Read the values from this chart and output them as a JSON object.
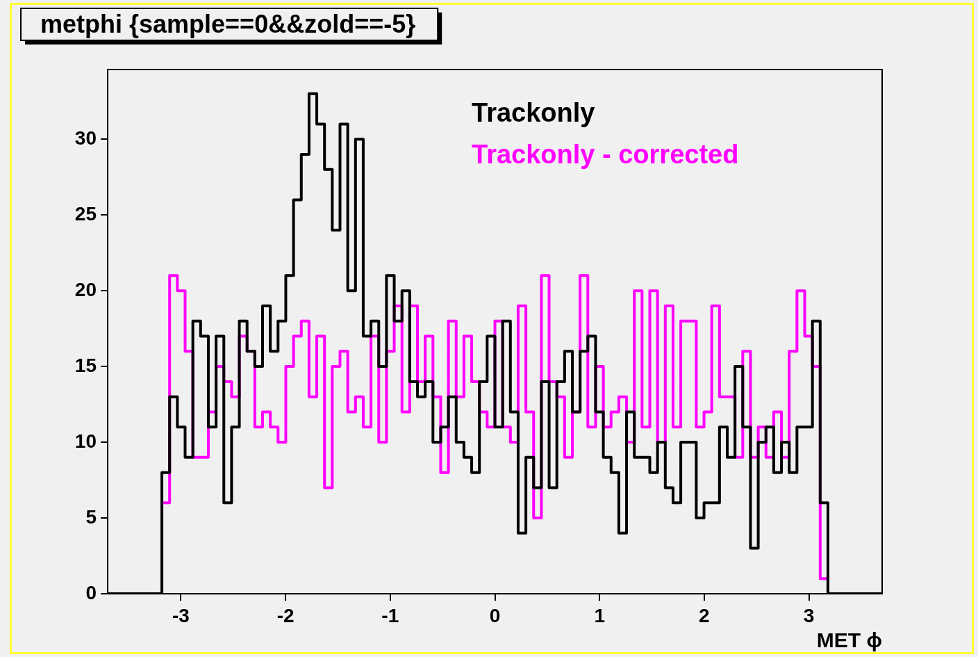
{
  "chart_data": {
    "type": "histogram",
    "title": "metphi {sample==0&&zold==-5}",
    "xlabel": "MET ϕ",
    "legend": "top right",
    "grid": false,
    "bins": [
      -3.7,
      -3.626,
      -3.552,
      -3.478,
      -3.404,
      -3.33,
      -3.256,
      -3.182,
      -3.108,
      -3.034,
      -2.96,
      -2.886,
      -2.812,
      -2.738,
      -2.664,
      -2.59,
      -2.516,
      -2.442,
      -2.368,
      -2.294,
      -2.22,
      -2.146,
      -2.072,
      -1.998,
      -1.924,
      -1.85,
      -1.776,
      -1.702,
      -1.628,
      -1.554,
      -1.48,
      -1.406,
      -1.332,
      -1.258,
      -1.184,
      -1.11,
      -1.036,
      -0.962,
      -0.888,
      -0.814,
      -0.74,
      -0.666,
      -0.592,
      -0.518,
      -0.444,
      -0.37,
      -0.296,
      -0.222,
      -0.148,
      -0.074,
      0,
      0.074,
      0.148,
      0.222,
      0.296,
      0.37,
      0.444,
      0.518,
      0.592,
      0.666,
      0.74,
      0.814,
      0.888,
      0.962,
      1.036,
      1.11,
      1.184,
      1.258,
      1.332,
      1.406,
      1.48,
      1.554,
      1.628,
      1.702,
      1.776,
      1.85,
      1.924,
      1.998,
      2.072,
      2.146,
      2.22,
      2.294,
      2.368,
      2.442,
      2.516,
      2.59,
      2.664,
      2.738,
      2.812,
      2.886,
      2.96,
      3.034,
      3.108,
      3.182,
      3.256,
      3.33,
      3.404,
      3.478,
      3.552,
      3.626,
      3.7
    ],
    "series": [
      {
        "name": "Trackonly",
        "color": "#000000",
        "values": [
          0,
          0,
          0,
          0,
          0,
          0,
          0,
          8,
          13,
          11,
          9,
          18,
          17,
          11,
          17,
          6,
          11,
          18,
          16,
          15,
          19,
          16,
          18,
          21,
          26,
          29,
          33,
          31,
          28,
          24,
          31,
          20,
          30,
          17,
          18,
          15,
          21,
          18,
          20,
          14,
          13,
          14,
          10,
          11,
          13,
          10,
          9,
          8,
          14,
          17,
          11,
          18,
          12,
          4,
          9,
          7,
          14,
          7,
          14,
          16,
          12,
          16,
          17,
          12,
          9,
          8,
          4,
          12,
          9,
          9,
          8,
          10,
          7,
          6,
          10,
          10,
          5,
          6,
          6,
          11,
          9,
          15,
          11,
          3,
          10,
          11,
          8,
          10,
          8,
          11,
          11,
          18,
          6,
          0,
          0,
          0,
          0,
          0,
          0,
          0
        ]
      },
      {
        "name": "Trackonly - corrected",
        "color": "#ff00ff",
        "values": [
          0,
          0,
          0,
          0,
          0,
          0,
          0,
          6,
          21,
          20,
          16,
          9,
          9,
          12,
          15,
          14,
          13,
          17,
          16,
          11,
          12,
          11,
          10,
          15,
          17,
          18,
          13,
          17,
          7,
          15,
          16,
          12,
          13,
          11,
          17,
          10,
          16,
          19,
          12,
          19,
          14,
          17,
          13,
          8,
          18,
          13,
          17,
          14,
          12,
          11,
          18,
          11,
          10,
          19,
          12,
          5,
          21,
          14,
          13,
          9,
          12,
          21,
          11,
          15,
          11,
          12,
          13,
          10,
          20,
          11,
          20,
          10,
          19,
          11,
          18,
          18,
          11,
          12,
          19,
          13,
          13,
          9,
          16,
          9,
          11,
          9,
          12,
          9,
          16,
          20,
          17,
          15,
          1,
          0,
          0,
          0,
          0,
          0,
          0,
          0
        ]
      }
    ],
    "xlim": [
      -3.7,
      3.7
    ],
    "xticks": [
      -3,
      -2,
      -1,
      0,
      1,
      2,
      3
    ],
    "ylim": [
      0,
      34.6
    ],
    "yticks": [
      0,
      5,
      10,
      15,
      20,
      25,
      30
    ]
  }
}
